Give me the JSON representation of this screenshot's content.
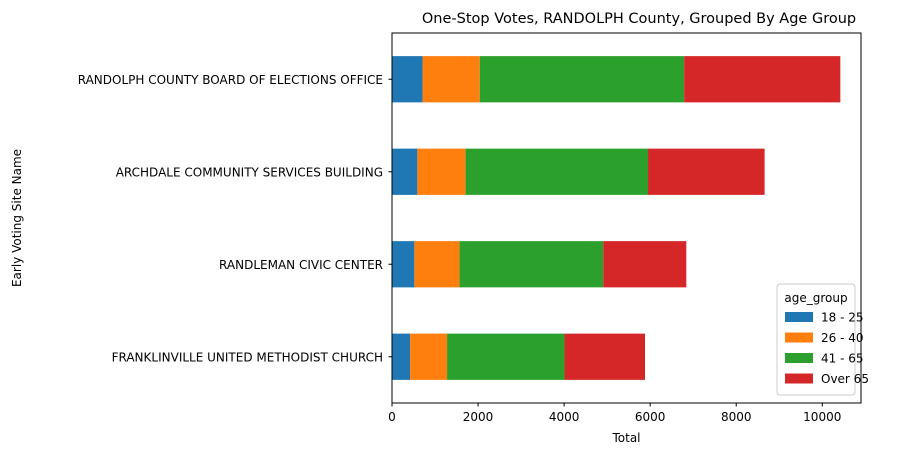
{
  "chart_data": {
    "type": "bar",
    "orientation": "horizontal",
    "stacked": true,
    "title": "One-Stop Votes, RANDOLPH County, Grouped By Age Group",
    "xlabel": "Total",
    "ylabel": "Early Voting Site Name",
    "xlim": [
      0,
      10900
    ],
    "xticks": [
      0,
      2000,
      4000,
      6000,
      8000,
      10000
    ],
    "grid": false,
    "categories": [
      "RANDOLPH COUNTY BOARD OF ELECTIONS OFFICE",
      "ARCHDALE COMMUNITY SERVICES BUILDING",
      "RANDLEMAN CIVIC CENTER",
      "FRANKLINVILLE UNITED METHODIST CHURCH"
    ],
    "series": [
      {
        "name": "18 - 25",
        "color": "#1f77b4",
        "values": [
          710,
          590,
          520,
          420
        ]
      },
      {
        "name": "26 - 40",
        "color": "#ff7f0e",
        "values": [
          1330,
          1120,
          1050,
          860
        ]
      },
      {
        "name": "41 - 65",
        "color": "#2ca02c",
        "values": [
          4750,
          4240,
          3340,
          2730
        ]
      },
      {
        "name": "Over 65",
        "color": "#d62728",
        "values": [
          3630,
          2710,
          1930,
          1870
        ]
      }
    ],
    "legend": {
      "title": "age_group",
      "placement": "lower-right"
    }
  }
}
